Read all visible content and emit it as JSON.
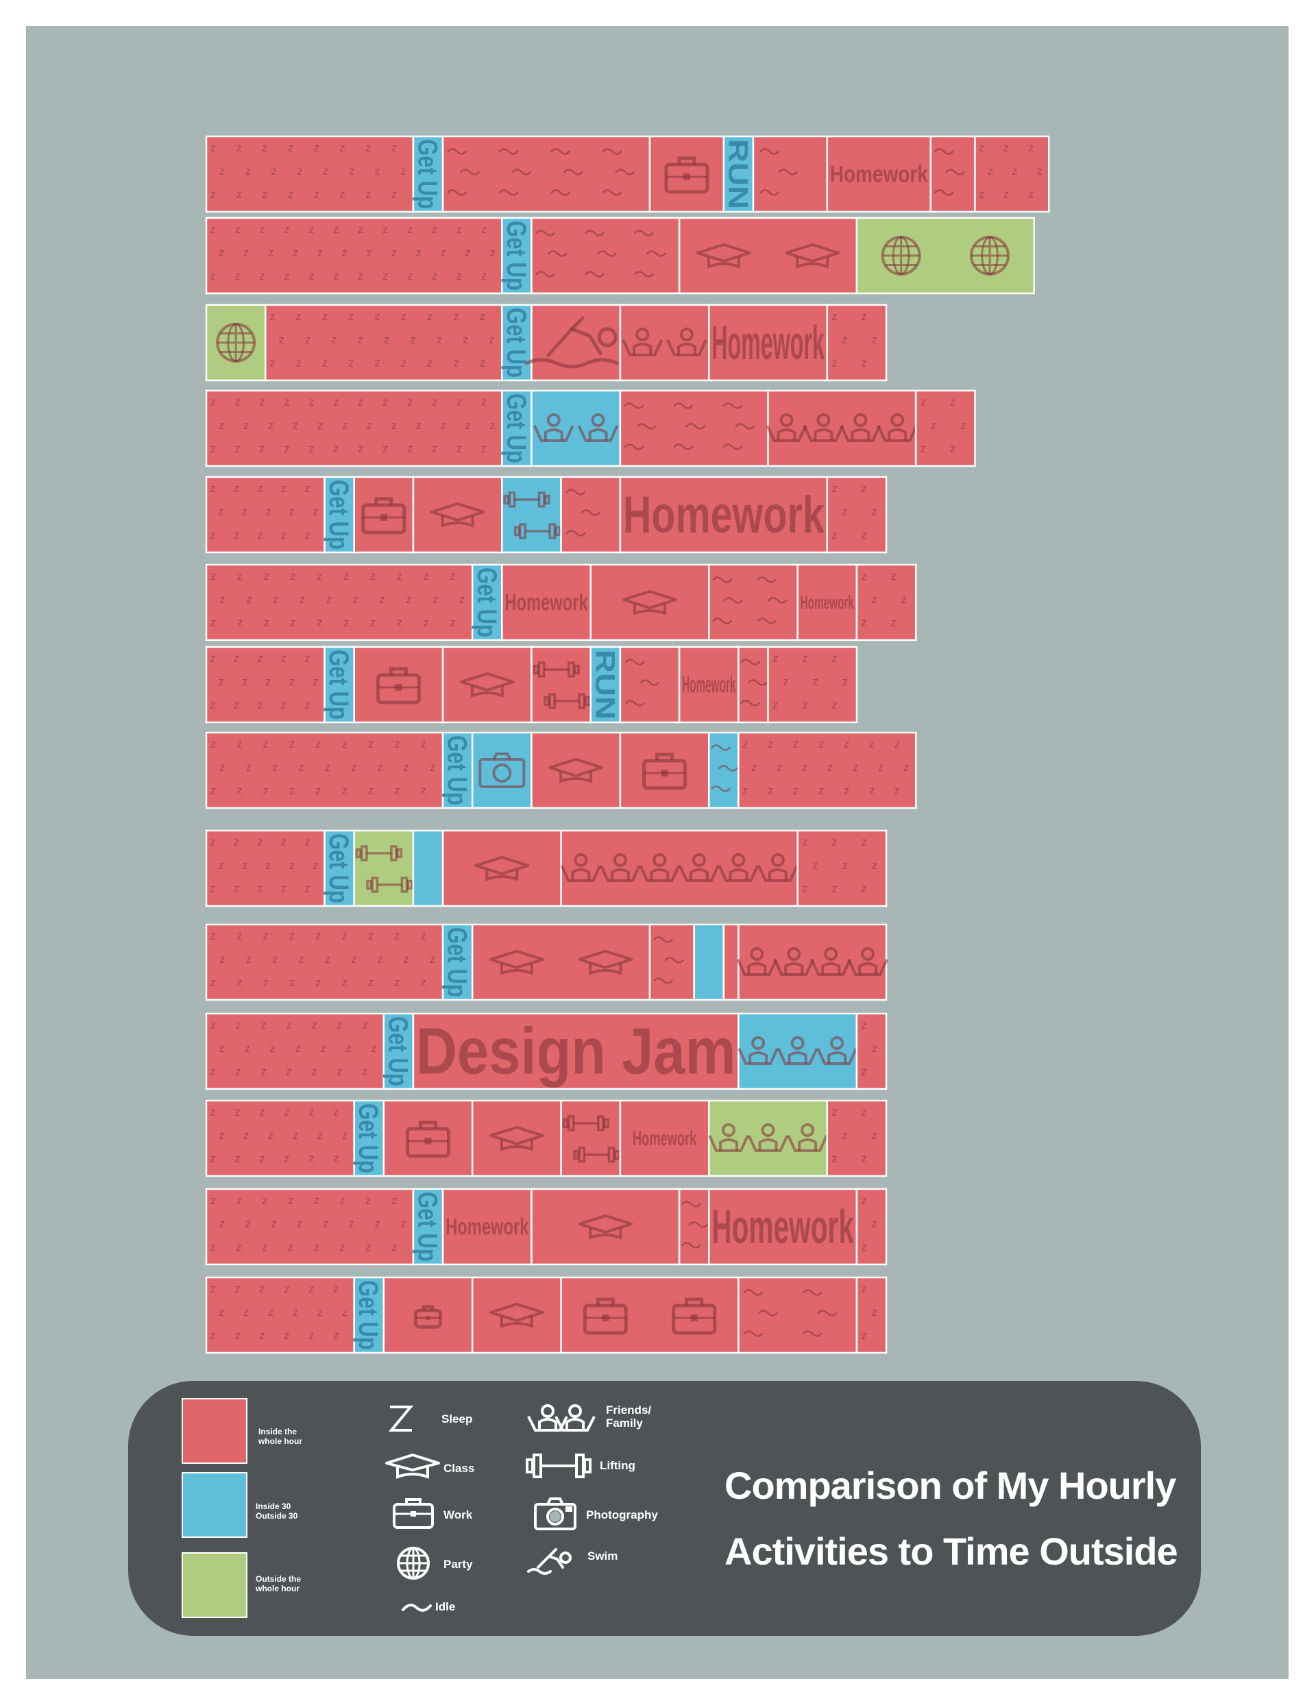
{
  "title": {
    "line1": "Comparison of My Hourly",
    "line2": "Activities to Time Outside"
  },
  "colors": {
    "inside": "#e0666b",
    "mixed": "#5fbfdb",
    "outside": "#b0cc80",
    "background": "#a9b6b6",
    "panel": "#4e5356"
  },
  "legend": {
    "colors": [
      {
        "key": "inside",
        "label": "Inside the whole hour"
      },
      {
        "key": "mixed",
        "label": "Inside 30 Outside 30"
      },
      {
        "key": "outside",
        "label": "Outside the whole hour"
      }
    ],
    "icons": [
      {
        "icon": "sleep",
        "label": "Sleep"
      },
      {
        "icon": "class",
        "label": "Class"
      },
      {
        "icon": "work",
        "label": "Work"
      },
      {
        "icon": "party",
        "label": "Party"
      },
      {
        "icon": "idle",
        "label": "Idle"
      },
      {
        "icon": "friends",
        "label": "Friends/\nFamily"
      },
      {
        "icon": "lifting",
        "label": "Lifting"
      },
      {
        "icon": "photography",
        "label": "Photography"
      },
      {
        "icon": "swim",
        "label": "Swim"
      }
    ]
  },
  "chart_data": {
    "type": "table",
    "unit": "hour",
    "days": [
      [
        [
          "sleep",
          "inside",
          3.5
        ],
        [
          "getup",
          "mixed",
          0.5
        ],
        [
          "idle",
          "inside",
          3.5
        ],
        [
          "work",
          "inside",
          1.25
        ],
        [
          "run",
          "mixed",
          0.5
        ],
        [
          "idle",
          "inside",
          1.25
        ],
        [
          "homework-small",
          "inside",
          1.75
        ],
        [
          "idle",
          "inside",
          0.75
        ],
        [
          "sleep",
          "inside",
          1.25
        ]
      ],
      [
        [
          "sleep",
          "inside",
          5
        ],
        [
          "getup",
          "mixed",
          0.5
        ],
        [
          "idle",
          "inside",
          2.5
        ],
        [
          "class",
          "inside",
          3
        ],
        [
          "party",
          "outside",
          3
        ]
      ],
      [
        [
          "party",
          "outside",
          1
        ],
        [
          "sleep",
          "inside",
          4
        ],
        [
          "getup",
          "mixed",
          0.5
        ],
        [
          "swim",
          "inside",
          1.5
        ],
        [
          "friends",
          "inside",
          1.5
        ],
        [
          "homework-tall",
          "inside",
          2
        ],
        [
          "sleep",
          "inside",
          1
        ]
      ],
      [
        [
          "sleep",
          "inside",
          5
        ],
        [
          "getup",
          "mixed",
          0.5
        ],
        [
          "friends",
          "mixed",
          1.5
        ],
        [
          "idle",
          "inside",
          2.5
        ],
        [
          "friends",
          "inside",
          2.5
        ],
        [
          "sleep",
          "inside",
          1
        ]
      ],
      [
        [
          "sleep",
          "inside",
          2
        ],
        [
          "getup",
          "mixed",
          0.5
        ],
        [
          "work",
          "inside",
          1
        ],
        [
          "class",
          "inside",
          1.5
        ],
        [
          "lifting",
          "mixed",
          1
        ],
        [
          "idle",
          "inside",
          1
        ],
        [
          "homework-large",
          "inside",
          3.5
        ],
        [
          "sleep",
          "inside",
          1
        ]
      ],
      [
        [
          "sleep",
          "inside",
          4.5
        ],
        [
          "getup",
          "mixed",
          0.5
        ],
        [
          "homework-small",
          "inside",
          1.5
        ],
        [
          "class",
          "inside",
          2
        ],
        [
          "idle",
          "inside",
          1.5
        ],
        [
          "homework-xs",
          "inside",
          1
        ],
        [
          "sleep",
          "inside",
          1
        ]
      ],
      [
        [
          "sleep",
          "inside",
          2
        ],
        [
          "getup",
          "mixed",
          0.5
        ],
        [
          "work",
          "inside",
          1.5
        ],
        [
          "class",
          "inside",
          1.5
        ],
        [
          "lifting",
          "inside",
          1
        ],
        [
          "run",
          "mixed",
          0.5
        ],
        [
          "idle",
          "inside",
          1
        ],
        [
          "homework-small",
          "inside",
          1
        ],
        [
          "idle",
          "inside",
          0.5
        ],
        [
          "sleep",
          "inside",
          1.5
        ]
      ],
      [
        [
          "sleep",
          "inside",
          4
        ],
        [
          "getup",
          "mixed",
          0.5
        ],
        [
          "photo",
          "mixed",
          1
        ],
        [
          "class",
          "inside",
          1.5
        ],
        [
          "work",
          "inside",
          1.5
        ],
        [
          "idle",
          "mixed",
          0.5
        ],
        [
          "sleep",
          "inside",
          3
        ]
      ],
      [
        [
          "sleep",
          "inside",
          2
        ],
        [
          "getup",
          "mixed",
          0.5
        ],
        [
          "lifting",
          "outside",
          1
        ],
        [
          "blank",
          "mixed",
          0.5
        ],
        [
          "class",
          "inside",
          2
        ],
        [
          "friends",
          "inside",
          4
        ],
        [
          "sleep",
          "inside",
          1.5
        ]
      ],
      [
        [
          "sleep",
          "inside",
          4
        ],
        [
          "getup",
          "mixed",
          0.5
        ],
        [
          "class",
          "inside",
          3
        ],
        [
          "idle",
          "inside",
          0.75
        ],
        [
          "blank",
          "mixed",
          0.5
        ],
        [
          "idle",
          "inside",
          0.25
        ],
        [
          "friends",
          "inside",
          2.5
        ]
      ],
      [
        [
          "sleep",
          "inside",
          3
        ],
        [
          "getup",
          "mixed",
          0.5
        ],
        [
          "designjam",
          "inside",
          5.5
        ],
        [
          "friends",
          "mixed",
          2
        ],
        [
          "sleep",
          "inside",
          0.5
        ]
      ],
      [
        [
          "sleep",
          "inside",
          2.5
        ],
        [
          "getup",
          "mixed",
          0.5
        ],
        [
          "work",
          "inside",
          1.5
        ],
        [
          "class",
          "inside",
          1.5
        ],
        [
          "lifting",
          "inside",
          1
        ],
        [
          "homework-medium",
          "inside",
          1.5
        ],
        [
          "friends",
          "outside",
          2
        ],
        [
          "sleep",
          "inside",
          1
        ]
      ],
      [
        [
          "sleep",
          "inside",
          3.5
        ],
        [
          "getup",
          "mixed",
          0.5
        ],
        [
          "homework-small",
          "inside",
          1.5
        ],
        [
          "class",
          "inside",
          2.5
        ],
        [
          "idle",
          "inside",
          0.5
        ],
        [
          "homework-tall",
          "inside",
          2.5
        ],
        [
          "sleep",
          "inside",
          0.5
        ]
      ],
      [
        [
          "sleep",
          "inside",
          2.5
        ],
        [
          "getup",
          "mixed",
          0.5
        ],
        [
          "work-small",
          "inside",
          1.5
        ],
        [
          "class",
          "inside",
          1.5
        ],
        [
          "work",
          "inside",
          3
        ],
        [
          "idle",
          "inside",
          2
        ],
        [
          "sleep",
          "inside",
          0.5
        ]
      ]
    ]
  }
}
